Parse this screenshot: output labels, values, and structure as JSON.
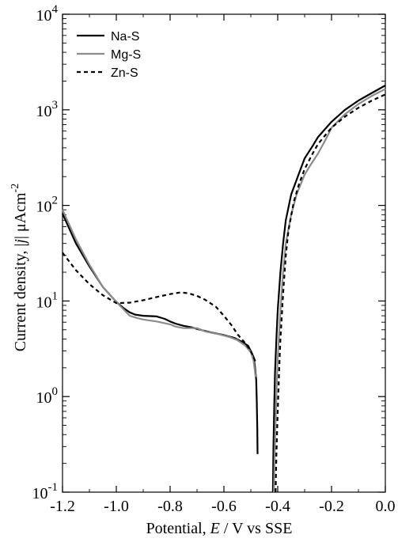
{
  "chart_data": {
    "type": "line",
    "xlabel": {
      "prefix": "Potential, ",
      "italic": "E",
      "suffix": " / V vs SSE"
    },
    "ylabel": {
      "prefix": "Current density, |",
      "italic": "j",
      "suffix": "| μAcm",
      "sup": "-2"
    },
    "xlim": [
      -1.2,
      0.0
    ],
    "ylim": [
      0.1,
      10000
    ],
    "yscale": "log",
    "xticks": [
      -1.2,
      -1.0,
      -0.8,
      -0.6,
      -0.4,
      -0.2,
      0.0
    ],
    "xtick_labels": [
      "-1.2",
      "-1.0",
      "-0.8",
      "-0.6",
      "-0.4",
      "-0.2",
      "0.0"
    ],
    "yticks": [
      {
        "base": "10",
        "exp": "-1"
      },
      {
        "base": "10",
        "exp": "0"
      },
      {
        "base": "10",
        "exp": "1"
      },
      {
        "base": "10",
        "exp": "2"
      },
      {
        "base": "10",
        "exp": "3"
      },
      {
        "base": "10",
        "exp": "4"
      }
    ],
    "legend_position": "top-left",
    "grid": false,
    "series": [
      {
        "name": "Na-S",
        "color": "#000000",
        "style": "solid",
        "width": 2.2,
        "segments": [
          [
            [
              -1.2,
              82
            ],
            [
              -1.15,
              40
            ],
            [
              -1.1,
              23
            ],
            [
              -1.05,
              14
            ],
            [
              -1.0,
              9.8
            ],
            [
              -0.97,
              8.3
            ],
            [
              -0.95,
              7.6
            ],
            [
              -0.93,
              7.2
            ],
            [
              -0.9,
              7.0
            ],
            [
              -0.85,
              6.9
            ],
            [
              -0.82,
              6.5
            ],
            [
              -0.8,
              6.1
            ],
            [
              -0.78,
              5.8
            ],
            [
              -0.75,
              5.5
            ],
            [
              -0.72,
              5.3
            ],
            [
              -0.7,
              5.1
            ],
            [
              -0.65,
              4.7
            ],
            [
              -0.6,
              4.4
            ],
            [
              -0.56,
              4.1
            ],
            [
              -0.53,
              3.7
            ],
            [
              -0.51,
              3.4
            ],
            [
              -0.5,
              3.0
            ],
            [
              -0.49,
              2.6
            ],
            [
              -0.485,
              2.1
            ],
            [
              -0.48,
              1.5
            ],
            [
              -0.478,
              0.9
            ],
            [
              -0.476,
              0.45
            ],
            [
              -0.475,
              0.25
            ]
          ],
          [
            [
              -0.418,
              0.1
            ],
            [
              -0.416,
              0.3
            ],
            [
              -0.413,
              0.8
            ],
            [
              -0.41,
              1.8
            ],
            [
              -0.405,
              4.0
            ],
            [
              -0.4,
              8
            ],
            [
              -0.39,
              20
            ],
            [
              -0.38,
              40
            ],
            [
              -0.37,
              70
            ],
            [
              -0.35,
              130
            ],
            [
              -0.32,
              220
            ],
            [
              -0.3,
              310
            ],
            [
              -0.27,
              420
            ],
            [
              -0.25,
              520
            ],
            [
              -0.2,
              750
            ],
            [
              -0.15,
              1000
            ],
            [
              -0.1,
              1250
            ],
            [
              -0.05,
              1500
            ],
            [
              0.0,
              1800
            ]
          ]
        ]
      },
      {
        "name": "Mg-S",
        "color": "#8c8c8c",
        "style": "solid",
        "width": 2.2,
        "segments": [
          [
            [
              -1.2,
              90
            ],
            [
              -1.15,
              44
            ],
            [
              -1.1,
              24
            ],
            [
              -1.05,
              14
            ],
            [
              -1.0,
              9.8
            ],
            [
              -0.97,
              8.0
            ],
            [
              -0.95,
              7.0
            ],
            [
              -0.92,
              6.6
            ],
            [
              -0.9,
              6.4
            ],
            [
              -0.85,
              6.1
            ],
            [
              -0.8,
              5.7
            ],
            [
              -0.78,
              5.4
            ],
            [
              -0.75,
              5.2
            ],
            [
              -0.7,
              5.2
            ],
            [
              -0.67,
              4.8
            ],
            [
              -0.62,
              4.5
            ],
            [
              -0.58,
              4.2
            ],
            [
              -0.55,
              3.9
            ],
            [
              -0.52,
              3.4
            ],
            [
              -0.5,
              2.9
            ],
            [
              -0.49,
              2.4
            ],
            [
              -0.482,
              1.6
            ]
          ],
          [
            [
              -0.414,
              0.1
            ],
            [
              -0.41,
              0.35
            ],
            [
              -0.405,
              1.0
            ],
            [
              -0.4,
              2.5
            ],
            [
              -0.39,
              8
            ],
            [
              -0.38,
              20
            ],
            [
              -0.37,
              40
            ],
            [
              -0.35,
              80
            ],
            [
              -0.33,
              130
            ],
            [
              -0.3,
              210
            ],
            [
              -0.28,
              260
            ],
            [
              -0.25,
              350
            ],
            [
              -0.22,
              500
            ],
            [
              -0.2,
              650
            ],
            [
              -0.15,
              900
            ],
            [
              -0.1,
              1150
            ],
            [
              -0.05,
              1400
            ],
            [
              0.0,
              1650
            ]
          ]
        ]
      },
      {
        "name": "Zn-S",
        "color": "#000000",
        "style": "dashed",
        "width": 2.2,
        "segments": [
          [
            [
              -1.2,
              32
            ],
            [
              -1.15,
              21
            ],
            [
              -1.1,
              15
            ],
            [
              -1.05,
              11.5
            ],
            [
              -1.0,
              9.5
            ],
            [
              -0.95,
              9.6
            ],
            [
              -0.9,
              10.2
            ],
            [
              -0.85,
              11.0
            ],
            [
              -0.8,
              11.8
            ],
            [
              -0.76,
              12.3
            ],
            [
              -0.73,
              12.0
            ],
            [
              -0.7,
              11.3
            ],
            [
              -0.67,
              10.3
            ],
            [
              -0.63,
              8.7
            ],
            [
              -0.6,
              7.0
            ],
            [
              -0.57,
              5.5
            ],
            [
              -0.55,
              4.5
            ],
            [
              -0.52,
              3.6
            ],
            [
              -0.5,
              3.0
            ],
            [
              -0.49,
              2.6
            ],
            [
              -0.48,
              2.2
            ]
          ],
          [
            [
              -0.408,
              0.1
            ],
            [
              -0.405,
              0.25
            ],
            [
              -0.4,
              0.7
            ],
            [
              -0.395,
              1.8
            ],
            [
              -0.39,
              4
            ],
            [
              -0.38,
              12
            ],
            [
              -0.37,
              30
            ],
            [
              -0.36,
              55
            ],
            [
              -0.34,
              110
            ],
            [
              -0.32,
              170
            ],
            [
              -0.3,
              240
            ],
            [
              -0.27,
              350
            ],
            [
              -0.25,
              440
            ],
            [
              -0.2,
              650
            ],
            [
              -0.15,
              850
            ],
            [
              -0.1,
              1050
            ],
            [
              -0.05,
              1250
            ],
            [
              0.0,
              1450
            ]
          ]
        ]
      }
    ]
  }
}
